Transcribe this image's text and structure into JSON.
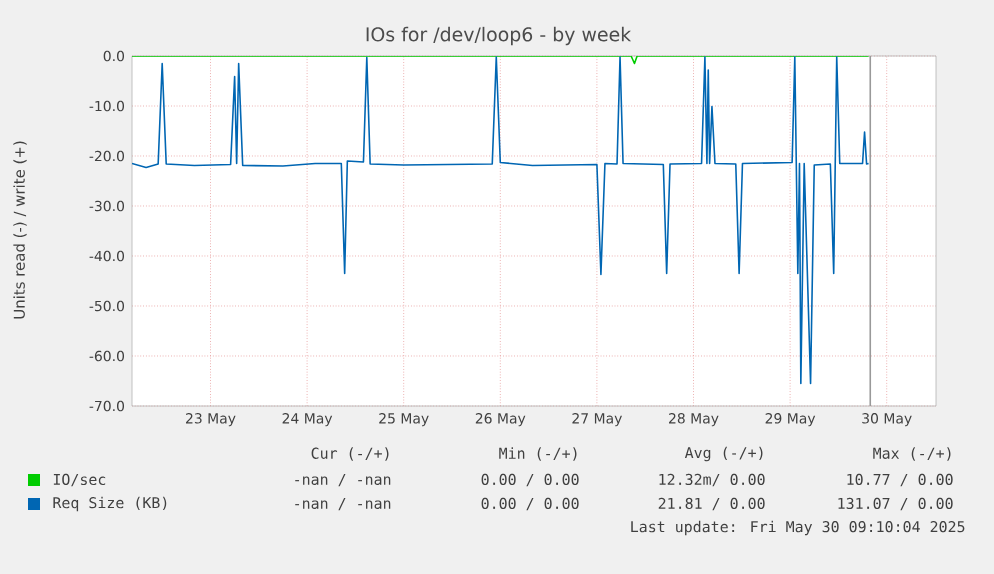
{
  "chart_data": {
    "type": "line",
    "title": "IOs for /dev/loop6 - by week",
    "ylabel": "Units read (-) / write (+)",
    "xlim": [
      "2025-05-22T16:30",
      "2025-05-31T00:15"
    ],
    "xticks": [
      {
        "value": "2025-05-23T12:00",
        "label": "23 May"
      },
      {
        "value": "2025-05-24T12:00",
        "label": "24 May"
      },
      {
        "value": "2025-05-25T12:00",
        "label": "25 May"
      },
      {
        "value": "2025-05-26T12:00",
        "label": "26 May"
      },
      {
        "value": "2025-05-27T12:00",
        "label": "27 May"
      },
      {
        "value": "2025-05-28T12:00",
        "label": "28 May"
      },
      {
        "value": "2025-05-29T12:00",
        "label": "29 May"
      },
      {
        "value": "2025-05-30T12:00",
        "label": "30 May"
      }
    ],
    "ylim": [
      -70,
      0
    ],
    "yticks": [
      {
        "value": -70,
        "label": "-70.0"
      },
      {
        "value": -60,
        "label": "-60.0"
      },
      {
        "value": -50,
        "label": "-50.0"
      },
      {
        "value": -40,
        "label": "-40.0"
      },
      {
        "value": -30,
        "label": "-30.0"
      },
      {
        "value": -20,
        "label": "-20.0"
      },
      {
        "value": -10,
        "label": "-10.0"
      },
      {
        "value": 0,
        "label": "0.0"
      }
    ],
    "grid": true,
    "legend": "bottom",
    "marker": "none",
    "line_style": "solid",
    "series": [
      {
        "name": "IO/sec",
        "color": "#00cc00",
        "x": [
          "2025-05-22T16:30",
          "2025-05-27T20:30",
          "2025-05-27T21:20",
          "2025-05-27T22:00",
          "2025-05-30T07:30"
        ],
        "values": [
          0,
          0,
          -1.5,
          0,
          0
        ]
      },
      {
        "name": "Req Size (KB)",
        "color": "#0066b3",
        "x": [
          "2025-05-22T16:30",
          "2025-05-22T20:00",
          "2025-05-22T23:00",
          "2025-05-23T00:00",
          "2025-05-23T01:00",
          "2025-05-23T08:00",
          "2025-05-23T17:00",
          "2025-05-23T18:00",
          "2025-05-23T18:30",
          "2025-05-23T19:00",
          "2025-05-23T20:00",
          "2025-05-24T06:00",
          "2025-05-24T14:00",
          "2025-05-24T20:30",
          "2025-05-24T21:20",
          "2025-05-24T22:00",
          "2025-05-25T02:00",
          "2025-05-25T02:50",
          "2025-05-25T03:40",
          "2025-05-25T12:00",
          "2025-05-26T10:00",
          "2025-05-26T11:00",
          "2025-05-26T12:00",
          "2025-05-26T20:00",
          "2025-05-27T12:00",
          "2025-05-27T13:00",
          "2025-05-27T14:00",
          "2025-05-27T17:00",
          "2025-05-27T17:45",
          "2025-05-27T18:30",
          "2025-05-28T04:30",
          "2025-05-28T05:20",
          "2025-05-28T06:10",
          "2025-05-28T14:00",
          "2025-05-28T14:50",
          "2025-05-28T15:20",
          "2025-05-28T15:40",
          "2025-05-28T16:00",
          "2025-05-28T16:35",
          "2025-05-28T17:20",
          "2025-05-28T22:30",
          "2025-05-28T23:20",
          "2025-05-29T00:10",
          "2025-05-29T12:30",
          "2025-05-29T13:10",
          "2025-05-29T13:55",
          "2025-05-29T14:20",
          "2025-05-29T14:40",
          "2025-05-29T15:30",
          "2025-05-29T17:05",
          "2025-05-29T18:00",
          "2025-05-29T22:00",
          "2025-05-29T22:50",
          "2025-05-29T23:35",
          "2025-05-30T00:20",
          "2025-05-30T06:00",
          "2025-05-30T06:30",
          "2025-05-30T07:00",
          "2025-05-30T07:30"
        ],
        "values": [
          -21.5,
          -22.3,
          -21.6,
          -1.5,
          -21.6,
          -21.9,
          -21.7,
          -4.1,
          -21.5,
          -1.5,
          -21.9,
          -22.0,
          -21.5,
          -21.5,
          -43.5,
          -21.0,
          -21.2,
          -0.3,
          -21.6,
          -21.8,
          -21.6,
          -0.2,
          -21.3,
          -21.9,
          -21.7,
          -43.7,
          -21.5,
          -21.6,
          -0.2,
          -21.5,
          -21.7,
          -43.5,
          -21.6,
          -21.5,
          -0.2,
          -21.5,
          -2.8,
          -21.5,
          -10.1,
          -21.5,
          -21.6,
          -43.5,
          -21.5,
          -21.3,
          -0.2,
          -43.5,
          -21.5,
          -65.5,
          -21.5,
          -65.5,
          -21.8,
          -21.6,
          -43.5,
          -0.2,
          -21.5,
          -21.5,
          -15.2,
          -21.6,
          -21.5
        ]
      }
    ],
    "ref_lines": [
      {
        "axis": "x",
        "value": "2025-05-30T07:55",
        "color": "#999999"
      }
    ],
    "annotations": [
      "Cur (-/+)",
      "Min (-/+)",
      "Avg (-/+)",
      "Max (-/+)",
      "-nan / -nan",
      "0.00 / 0.00",
      "12.32m/ 0.00",
      "10.77 / 0.00",
      "-nan / -nan",
      "0.00 / 0.00",
      "21.81 / 0.00",
      "131.07 / 0.00",
      "Last update: Fri May 30 09:10:04 2025"
    ]
  }
}
